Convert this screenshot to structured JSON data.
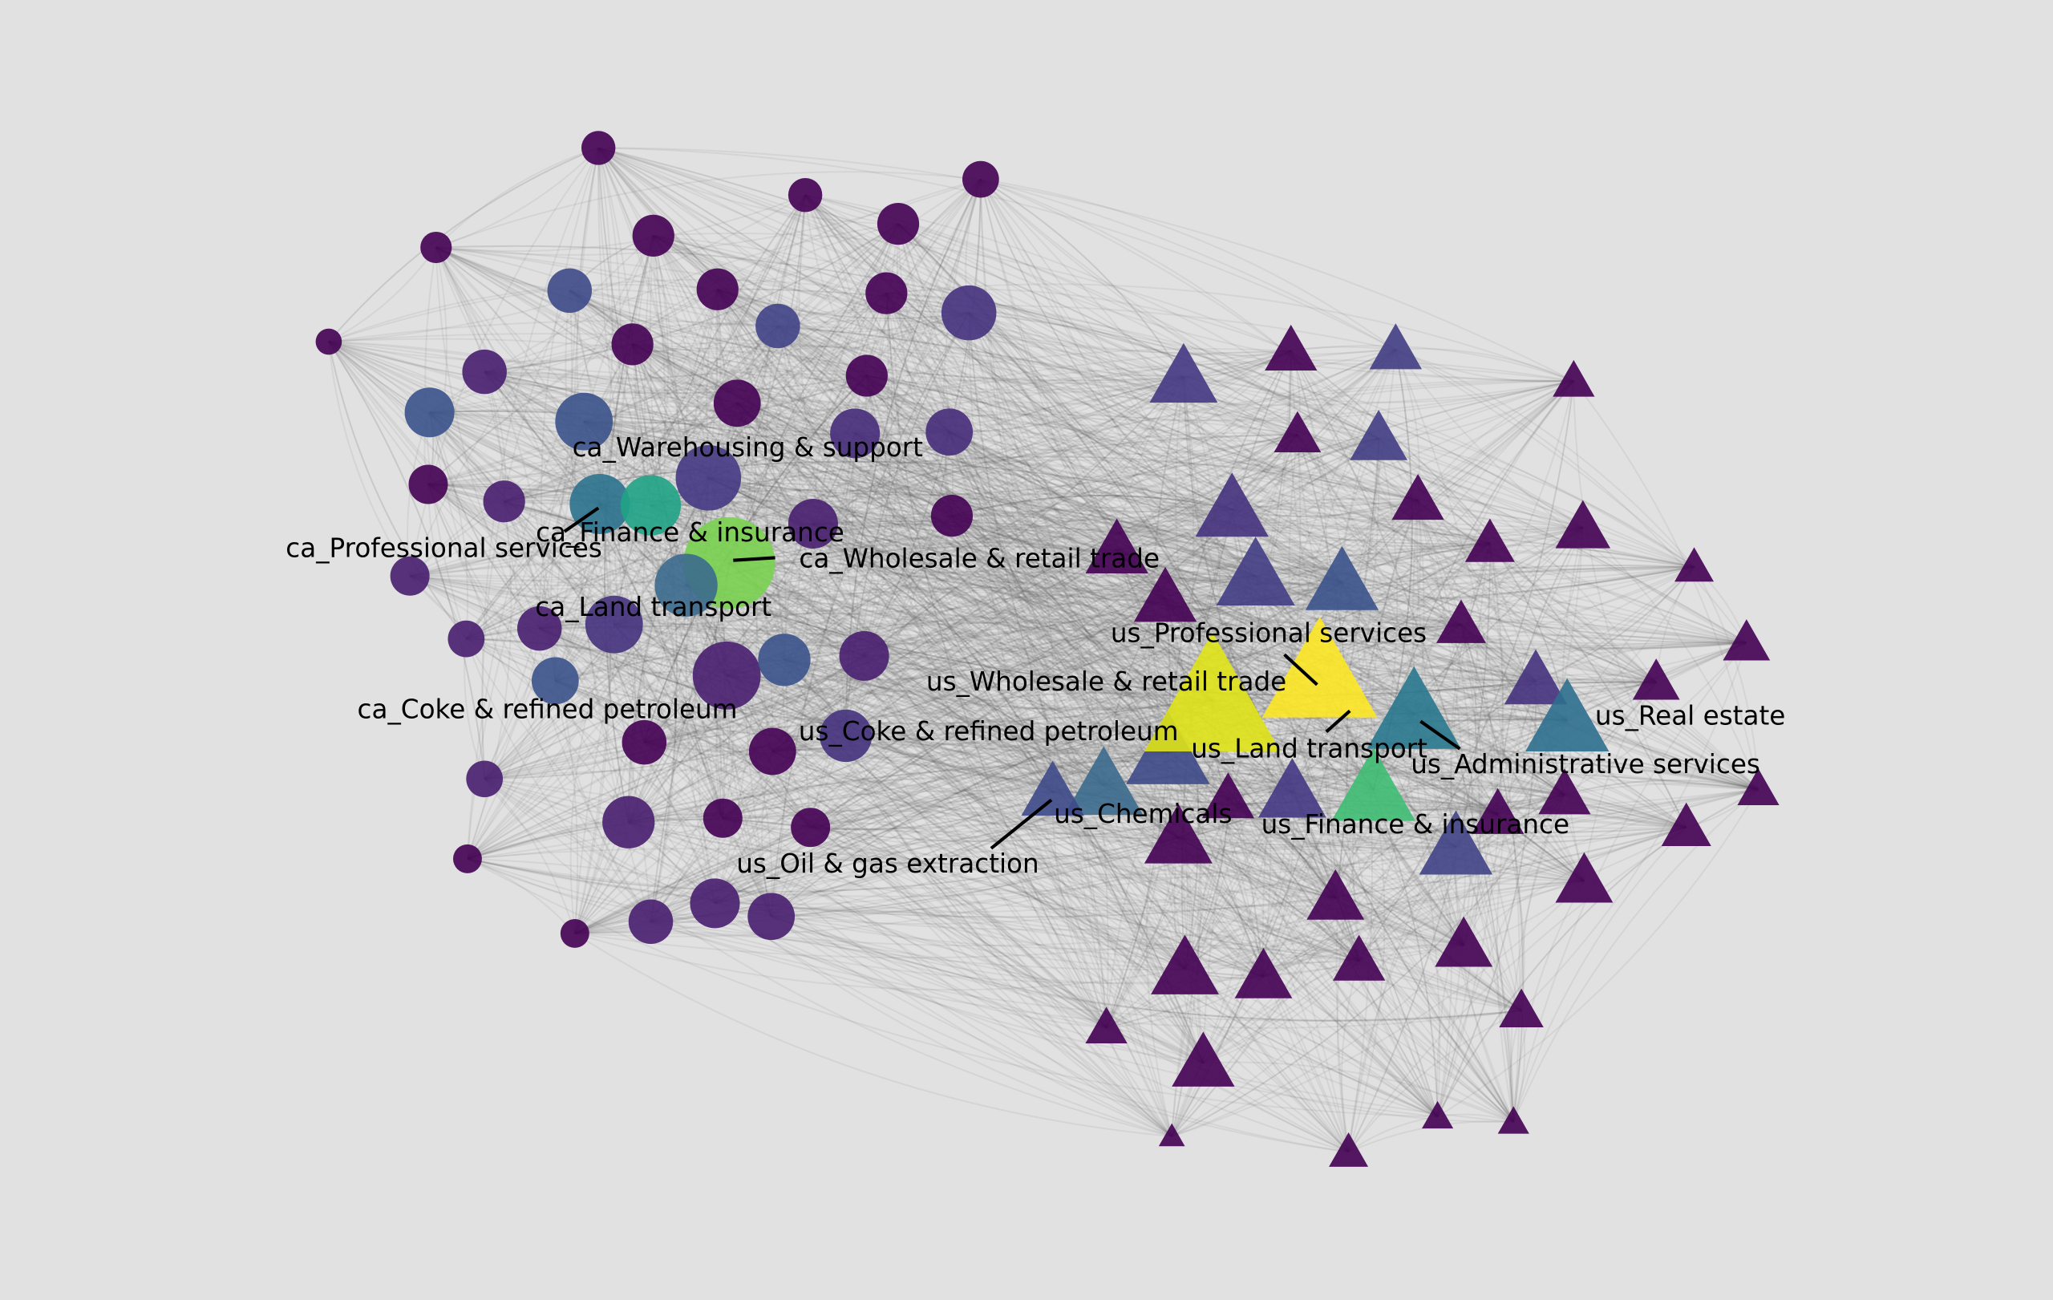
{
  "labels": [
    "ca_Warehousing & support",
    "ca_Professional services",
    "ca_Finance & insurance",
    "ca_Wholesale & retail trade",
    "ca_Land transport",
    "ca_Coke & refined petroleum",
    "us_Coke & refined petroleum",
    "us_Professional services",
    "us_Wholesale & retail trade",
    "us_Real estate",
    "us_Land transport",
    "us_Administrative services",
    "us_Chemicals",
    "us_Finance & insurance",
    "us_Oil & gas extraction"
  ]
}
